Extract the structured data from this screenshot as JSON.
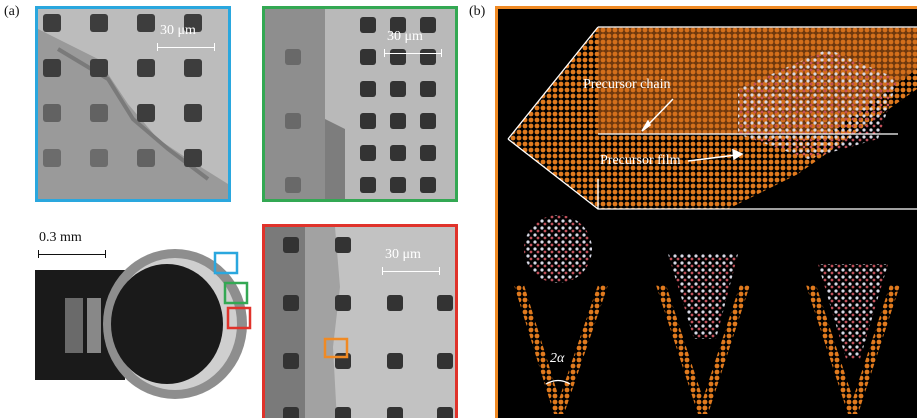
{
  "panel_a": {
    "label": "(a)",
    "scale_blue": "30 μm",
    "scale_green": "30 μm",
    "scale_red": "30 μm",
    "scale_drop": "0.3 mm",
    "frame_colors": {
      "blue": "#2aa7de",
      "green": "#33a853",
      "red": "#e0332b",
      "orange": "#f08a24"
    }
  },
  "panel_b": {
    "label": "(b)",
    "precursor_chain": "Precursor chain",
    "precursor_film": "Precursor film",
    "angle_label": "2α",
    "frame_color": "#f08a24"
  }
}
